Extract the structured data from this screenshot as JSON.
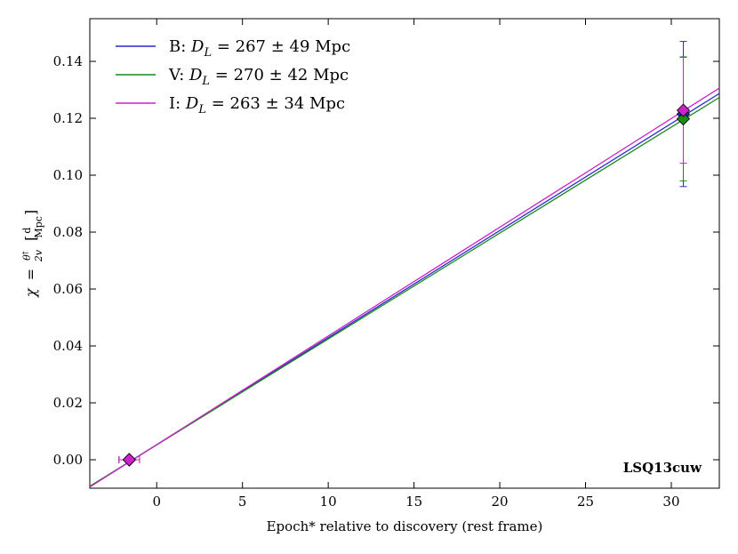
{
  "chart_data": {
    "type": "line",
    "xlabel": "Epoch* relative to discovery (rest frame)",
    "ylabel": "χ = θ†/2v [d/Mpc]",
    "ylabel_parts": {
      "chi": "χ",
      "eq": "=",
      "num": "θ",
      "num_sup": "†",
      "den": "2v",
      "unit_num": "d",
      "unit_den": "Mpc"
    },
    "xlim": [
      -3.9,
      32.8
    ],
    "ylim": [
      -0.01,
      0.155
    ],
    "xticks": [
      0,
      5,
      10,
      15,
      20,
      25,
      30
    ],
    "xtick_labels": [
      "0",
      "5",
      "10",
      "15",
      "20",
      "25",
      "30"
    ],
    "yticks": [
      0.0,
      0.02,
      0.04,
      0.06,
      0.08,
      0.1,
      0.12,
      0.14
    ],
    "ytick_labels": [
      "0.00",
      "0.02",
      "0.04",
      "0.06",
      "0.08",
      "0.10",
      "0.12",
      "0.14"
    ],
    "annotation": "LSQ13cuw",
    "series": [
      {
        "name": "B",
        "legend_prefix": "B: ",
        "legend_DL": "D",
        "legend_sub": "L",
        "legend_value": " = 267 ± 49 Mpc",
        "color": "#2929cc",
        "line": {
          "x": [
            -3.9,
            32.8
          ],
          "y": [
            -0.0094,
            0.1287
          ]
        },
        "points": [
          {
            "x": -1.6,
            "y": 0.0,
            "yerr": 0.0,
            "xerr": 0.6
          },
          {
            "x": 30.7,
            "y": 0.1215,
            "yerr_low": 0.0255,
            "yerr_high": 0.0255
          }
        ]
      },
      {
        "name": "V",
        "legend_prefix": "V: ",
        "legend_DL": "D",
        "legend_sub": "L",
        "legend_value": " = 270 ± 42 Mpc",
        "color": "#1a8a1a",
        "line": {
          "x": [
            -3.9,
            32.8
          ],
          "y": [
            -0.0093,
            0.1273
          ]
        },
        "points": [
          {
            "x": -1.6,
            "y": 0.0,
            "yerr": 0.0,
            "xerr": 0.6
          },
          {
            "x": 30.7,
            "y": 0.1198,
            "yerr_low": 0.0218,
            "yerr_high": 0.0218
          }
        ]
      },
      {
        "name": "I",
        "legend_prefix": "I: ",
        "legend_DL": "D",
        "legend_sub": "L",
        "legend_value": " = 263 ± 34 Mpc",
        "color": "#cc22cc",
        "line": {
          "x": [
            -3.9,
            32.8
          ],
          "y": [
            -0.0096,
            0.1306
          ]
        },
        "points": [
          {
            "x": -1.6,
            "y": 0.0,
            "yerr": 0.0,
            "xerr": 0.6
          },
          {
            "x": 30.7,
            "y": 0.1228,
            "yerr_low": 0.0186,
            "yerr_high": 0.0186
          }
        ]
      }
    ]
  }
}
